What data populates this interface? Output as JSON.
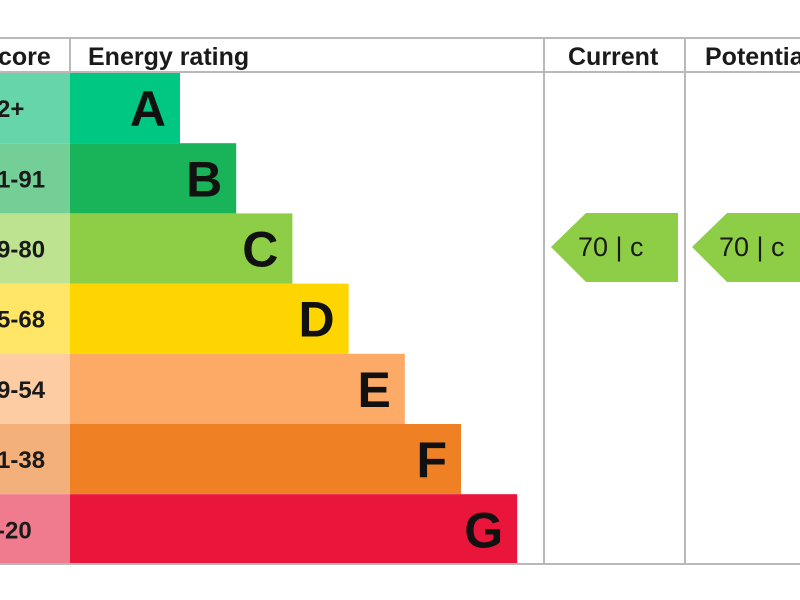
{
  "chart_data": {
    "type": "table",
    "headers": {
      "score": "core",
      "rating": "Energy rating",
      "current": "Current",
      "potential": "Potentia"
    },
    "bands": [
      {
        "letter": "A",
        "score_label": "2+",
        "color": "#00c781",
        "score_bg": "#66d5a9"
      },
      {
        "letter": "B",
        "score_label": "1-91",
        "color": "#19b459",
        "score_bg": "#74cf96"
      },
      {
        "letter": "C",
        "score_label": "9-80",
        "color": "#8dce46",
        "score_bg": "#bde391"
      },
      {
        "letter": "D",
        "score_label": "5-68",
        "color": "#ffd500",
        "score_bg": "#ffe666"
      },
      {
        "letter": "E",
        "score_label": "9-54",
        "color": "#fcaa65",
        "score_bg": "#fdcca3"
      },
      {
        "letter": "F",
        "score_label": "1-38",
        "color": "#ef8023",
        "score_bg": "#f4b07b"
      },
      {
        "letter": "G",
        "score_label": "-20",
        "color": "#e9153b",
        "score_bg": "#f07a8e"
      }
    ],
    "current": {
      "value": 70,
      "band": "c",
      "text": "70 |  c",
      "color": "#8dce46"
    },
    "potential": {
      "value": 70,
      "band": "c",
      "text": "70 |  c",
      "color": "#8dce46"
    },
    "grid_color": "#b9b9b9"
  }
}
